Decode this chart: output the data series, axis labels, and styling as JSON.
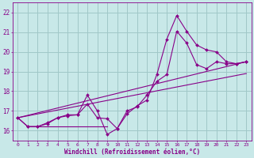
{
  "xlabel": "Windchill (Refroidissement éolien,°C)",
  "xlim": [
    -0.5,
    23.5
  ],
  "ylim": [
    15.5,
    22.5
  ],
  "yticks": [
    16,
    17,
    18,
    19,
    20,
    21,
    22
  ],
  "xticks": [
    0,
    1,
    2,
    3,
    4,
    5,
    6,
    7,
    8,
    9,
    10,
    11,
    12,
    13,
    14,
    15,
    16,
    17,
    18,
    19,
    20,
    21,
    22,
    23
  ],
  "bg_color": "#c8e8e8",
  "grid_color": "#a0c8c8",
  "line_color": "#880088",
  "series_zigzag1": {
    "x": [
      0,
      1,
      2,
      3,
      4,
      5,
      6,
      7,
      8,
      9,
      10,
      11,
      12,
      13,
      14,
      15,
      16,
      17,
      18,
      19,
      20,
      21,
      22,
      23
    ],
    "y": [
      16.65,
      16.2,
      16.2,
      16.35,
      16.65,
      16.75,
      16.8,
      17.8,
      17.0,
      15.8,
      16.1,
      16.85,
      17.25,
      17.55,
      18.85,
      20.65,
      21.85,
      21.05,
      20.35,
      20.1,
      20.0,
      19.5,
      19.4,
      19.5
    ]
  },
  "series_zigzag2": {
    "x": [
      0,
      1,
      2,
      3,
      4,
      5,
      6,
      7,
      8,
      9,
      10,
      11,
      12,
      13,
      14,
      15,
      16,
      17,
      18,
      19,
      20,
      21,
      22,
      23
    ],
    "y": [
      16.65,
      16.2,
      16.2,
      16.4,
      16.65,
      16.8,
      16.8,
      17.35,
      16.65,
      16.6,
      16.1,
      17.0,
      17.2,
      17.8,
      18.5,
      18.85,
      21.05,
      20.45,
      19.35,
      19.15,
      19.5,
      19.4,
      19.4,
      19.5
    ]
  },
  "series_flat": {
    "x": [
      1,
      9
    ],
    "y": [
      16.2,
      16.2
    ]
  },
  "series_trend1": {
    "x": [
      0,
      23
    ],
    "y": [
      16.65,
      19.5
    ]
  },
  "series_trend2": {
    "x": [
      0,
      23
    ],
    "y": [
      16.65,
      18.9
    ]
  }
}
